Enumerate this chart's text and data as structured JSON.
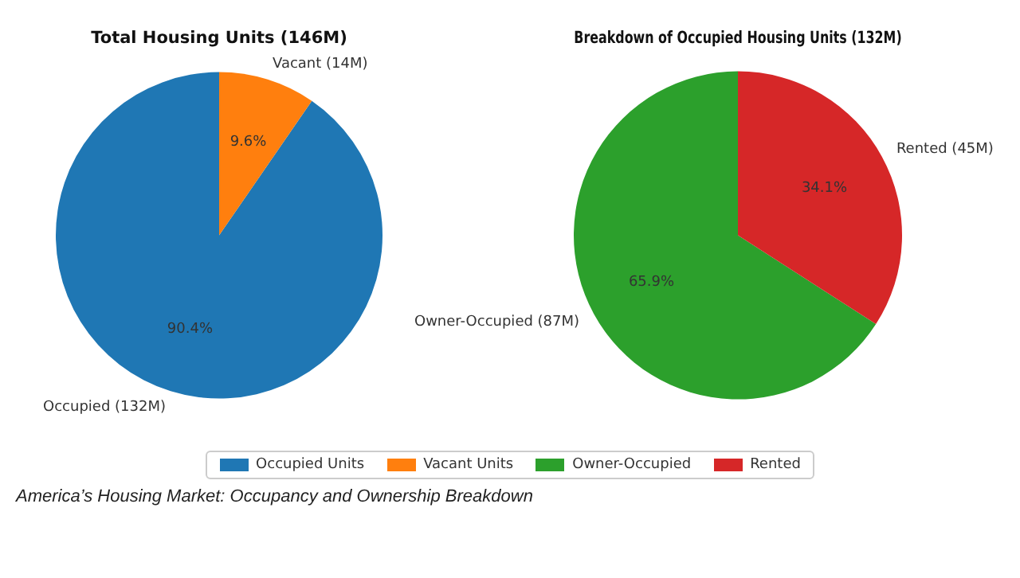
{
  "chart_data": [
    {
      "type": "pie",
      "title": "Total Housing Units (146M)",
      "categories": [
        "Occupied Units",
        "Vacant Units"
      ],
      "values": [
        90.4,
        9.6
      ],
      "colors": [
        "#1f77b4",
        "#ff7f0e"
      ],
      "value_labels": [
        "90.4%",
        "9.6%"
      ],
      "annotations": [
        "Occupied (132M)",
        "Vacant (14M)"
      ],
      "legend": "bottom"
    },
    {
      "type": "pie",
      "title": "Breakdown of Occupied Housing Units (132M)",
      "categories": [
        "Owner-Occupied",
        "Rented"
      ],
      "values": [
        65.9,
        34.1
      ],
      "colors": [
        "#2ca02c",
        "#d62728"
      ],
      "value_labels": [
        "65.9%",
        "34.1%"
      ],
      "annotations": [
        "Owner-Occupied (87M)",
        "Rented (45M)"
      ],
      "legend": "bottom"
    },
    {
      "type": "other",
      "annotations": [
        "America’s Housing Market: Occupancy and Ownership Breakdown"
      ]
    }
  ]
}
